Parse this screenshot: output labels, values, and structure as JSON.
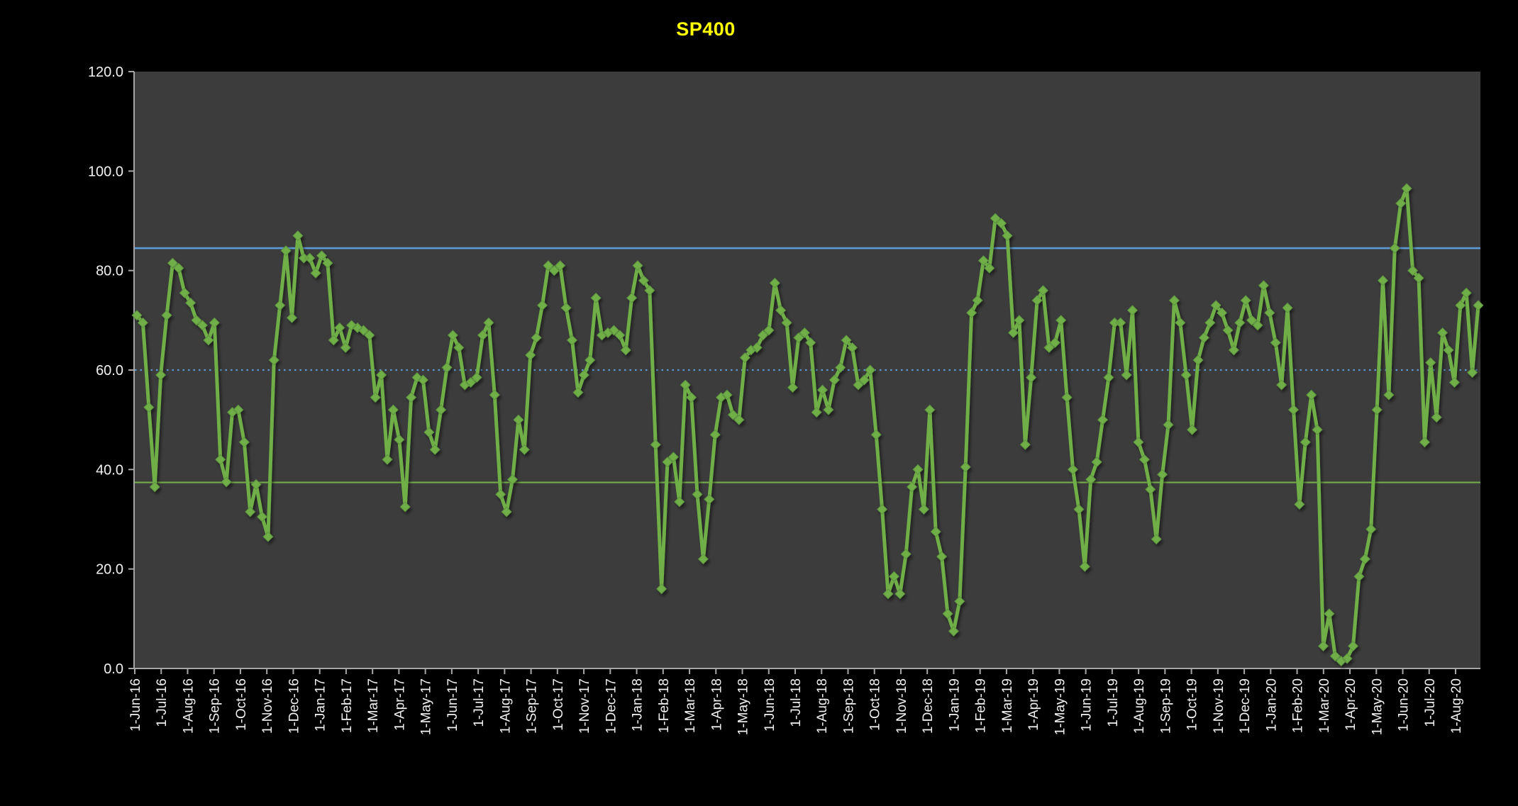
{
  "title": "SP400",
  "colors": {
    "background": "#000000",
    "plot_background": "#3C3C3C",
    "axis": "#A6A6A6",
    "tick_label": "#F2F2F2",
    "title": "#FFFF00",
    "series": "#6FAE47",
    "upper_line": "#5B9BD5",
    "mid_line": "#5B9BD5",
    "lower_line": "#74AD49"
  },
  "chart_data": {
    "type": "line",
    "title": "SP400",
    "xlabel": "",
    "ylabel": "",
    "ylim": [
      0,
      120
    ],
    "grid": false,
    "legend": null,
    "frequency": "weekly",
    "marker": "diamond",
    "y_ticks": [
      0,
      20,
      40,
      60,
      80,
      100,
      120
    ],
    "y_tick_labels": [
      "0.0",
      "20.0",
      "40.0",
      "60.0",
      "80.0",
      "100.0",
      "120.0"
    ],
    "x_tick_labels": [
      "1-Jun-16",
      "1-Jul-16",
      "1-Aug-16",
      "1-Sep-16",
      "1-Oct-16",
      "1-Nov-16",
      "1-Dec-16",
      "1-Jan-17",
      "1-Feb-17",
      "1-Mar-17",
      "1-Apr-17",
      "1-May-17",
      "1-Jun-17",
      "1-Jul-17",
      "1-Aug-17",
      "1-Sep-17",
      "1-Oct-17",
      "1-Nov-17",
      "1-Dec-17",
      "1-Jan-18",
      "1-Feb-18",
      "1-Mar-18",
      "1-Apr-18",
      "1-May-18",
      "1-Jun-18",
      "1-Jul-18",
      "1-Aug-18",
      "1-Sep-18",
      "1-Oct-18",
      "1-Nov-18",
      "1-Dec-18",
      "1-Jan-19",
      "1-Feb-19",
      "1-Mar-19",
      "1-Apr-19",
      "1-May-19",
      "1-Jun-19",
      "1-Jul-19",
      "1-Aug-19",
      "1-Sep-19",
      "1-Oct-19",
      "1-Nov-19",
      "1-Dec-19",
      "1-Jan-20",
      "1-Feb-20",
      "1-Mar-20",
      "1-Apr-20",
      "1-May-20",
      "1-Jun-20",
      "1-Jul-20",
      "1-Aug-20"
    ],
    "reference_lines": [
      {
        "name": "upper-band-line",
        "value": 84.5,
        "style": "solid",
        "color": "#5B9BD5",
        "width": 2.6
      },
      {
        "name": "mid-band-line",
        "value": 60.0,
        "style": "dotted",
        "color": "#5B9BD5",
        "width": 2.2
      },
      {
        "name": "lower-band-line",
        "value": 37.4,
        "style": "solid",
        "color": "#74AD49",
        "width": 2.2
      }
    ],
    "series": [
      {
        "name": "SP400",
        "values": [
          71,
          69.5,
          52.5,
          36.5,
          59,
          71,
          81.5,
          80.5,
          75.5,
          73.5,
          70,
          69,
          66,
          69.5,
          42,
          37.5,
          51.5,
          52,
          45.5,
          31.5,
          37,
          30.5,
          26.5,
          62,
          73,
          84,
          70.5,
          87,
          82.5,
          82.5,
          79.5,
          83,
          81.5,
          66,
          68.5,
          64.5,
          69,
          68.5,
          68,
          67,
          54.5,
          59,
          42,
          52,
          46,
          32.5,
          54.5,
          58.5,
          58,
          47.5,
          44,
          52,
          60.5,
          67,
          64.5,
          57,
          57.5,
          58.5,
          67,
          69.5,
          55,
          35,
          31.5,
          38,
          50,
          44,
          63,
          66.5,
          73,
          81,
          80,
          81,
          72.5,
          66,
          55.5,
          59,
          62,
          74.5,
          67,
          67.5,
          68,
          67,
          64,
          74.5,
          81,
          78,
          76,
          45,
          16,
          41.5,
          42.5,
          33.5,
          57,
          54.5,
          35,
          22,
          34,
          47,
          54.5,
          55,
          51,
          50,
          62.5,
          64,
          64.5,
          67,
          68,
          77.5,
          72,
          69.5,
          56.5,
          66.5,
          67.5,
          65.5,
          51.5,
          56,
          52,
          58,
          60.5,
          66,
          64.5,
          57,
          58,
          60,
          47,
          32,
          15,
          18.5,
          15,
          23,
          36.5,
          40,
          32,
          52,
          27.5,
          22.5,
          11,
          7.5,
          13.5,
          40.5,
          71.5,
          74,
          82,
          80.5,
          90.5,
          89.5,
          87,
          67.5,
          70,
          45,
          58.5,
          74,
          76,
          64.5,
          65.5,
          70,
          54.5,
          40,
          32,
          20.5,
          38,
          41.5,
          50,
          58.5,
          69.5,
          69.5,
          59,
          72,
          45.5,
          42,
          36,
          26,
          39,
          49,
          74,
          69.5,
          59,
          48,
          62,
          66.5,
          69.5,
          73,
          71.5,
          68,
          64,
          69.5,
          74,
          70,
          69,
          77,
          71.5,
          65.5,
          57,
          72.5,
          52,
          33,
          45.5,
          55,
          48,
          4.5,
          11,
          2.5,
          1.5,
          2,
          4.5,
          18.5,
          22,
          28,
          52,
          78,
          55,
          84.5,
          93.5,
          96.5,
          80,
          78.5,
          45.5,
          61.5,
          50.5,
          67.5,
          64,
          57.5,
          73,
          75.5,
          59.5,
          73
        ]
      }
    ]
  }
}
